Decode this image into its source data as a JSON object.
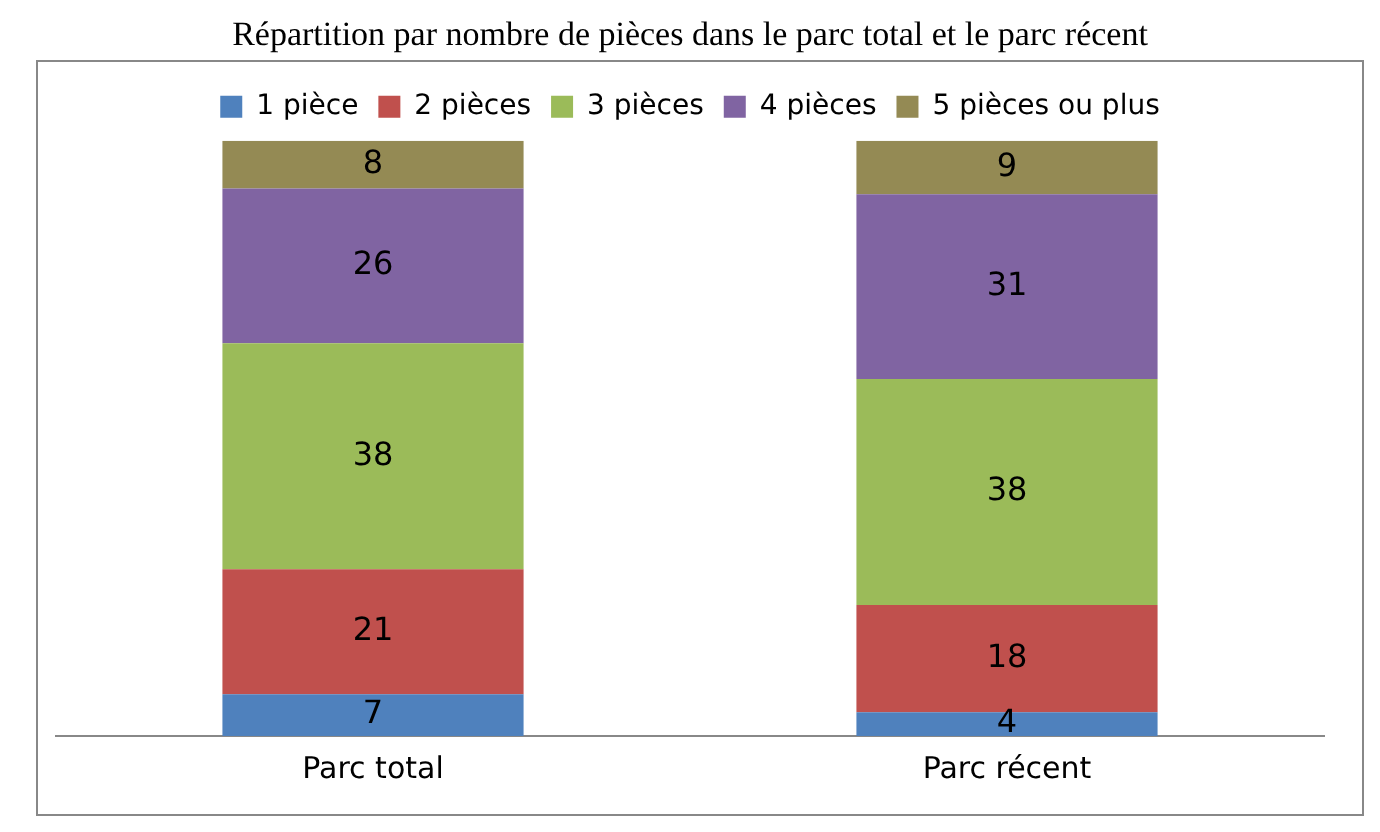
{
  "chart_data": {
    "type": "bar",
    "title": "Répartition par nombre de pièces dans le parc total et le parc récent",
    "categories": [
      "Parc total",
      "Parc récent"
    ],
    "stacked": true,
    "data_labels": true,
    "legend": "top",
    "grid": false,
    "series": [
      {
        "name": "1 pièce",
        "color": "#4f81bd",
        "values": [
          7,
          4
        ]
      },
      {
        "name": "2 pièces",
        "color": "#c0504d",
        "values": [
          21,
          18
        ]
      },
      {
        "name": "3 pièces",
        "color": "#9bbb59",
        "values": [
          38,
          38
        ]
      },
      {
        "name": "4 pièces",
        "color": "#8064a2",
        "values": [
          26,
          31
        ]
      },
      {
        "name": "5 pièces ou plus",
        "color": "#948a54",
        "values": [
          8,
          9
        ]
      }
    ]
  }
}
